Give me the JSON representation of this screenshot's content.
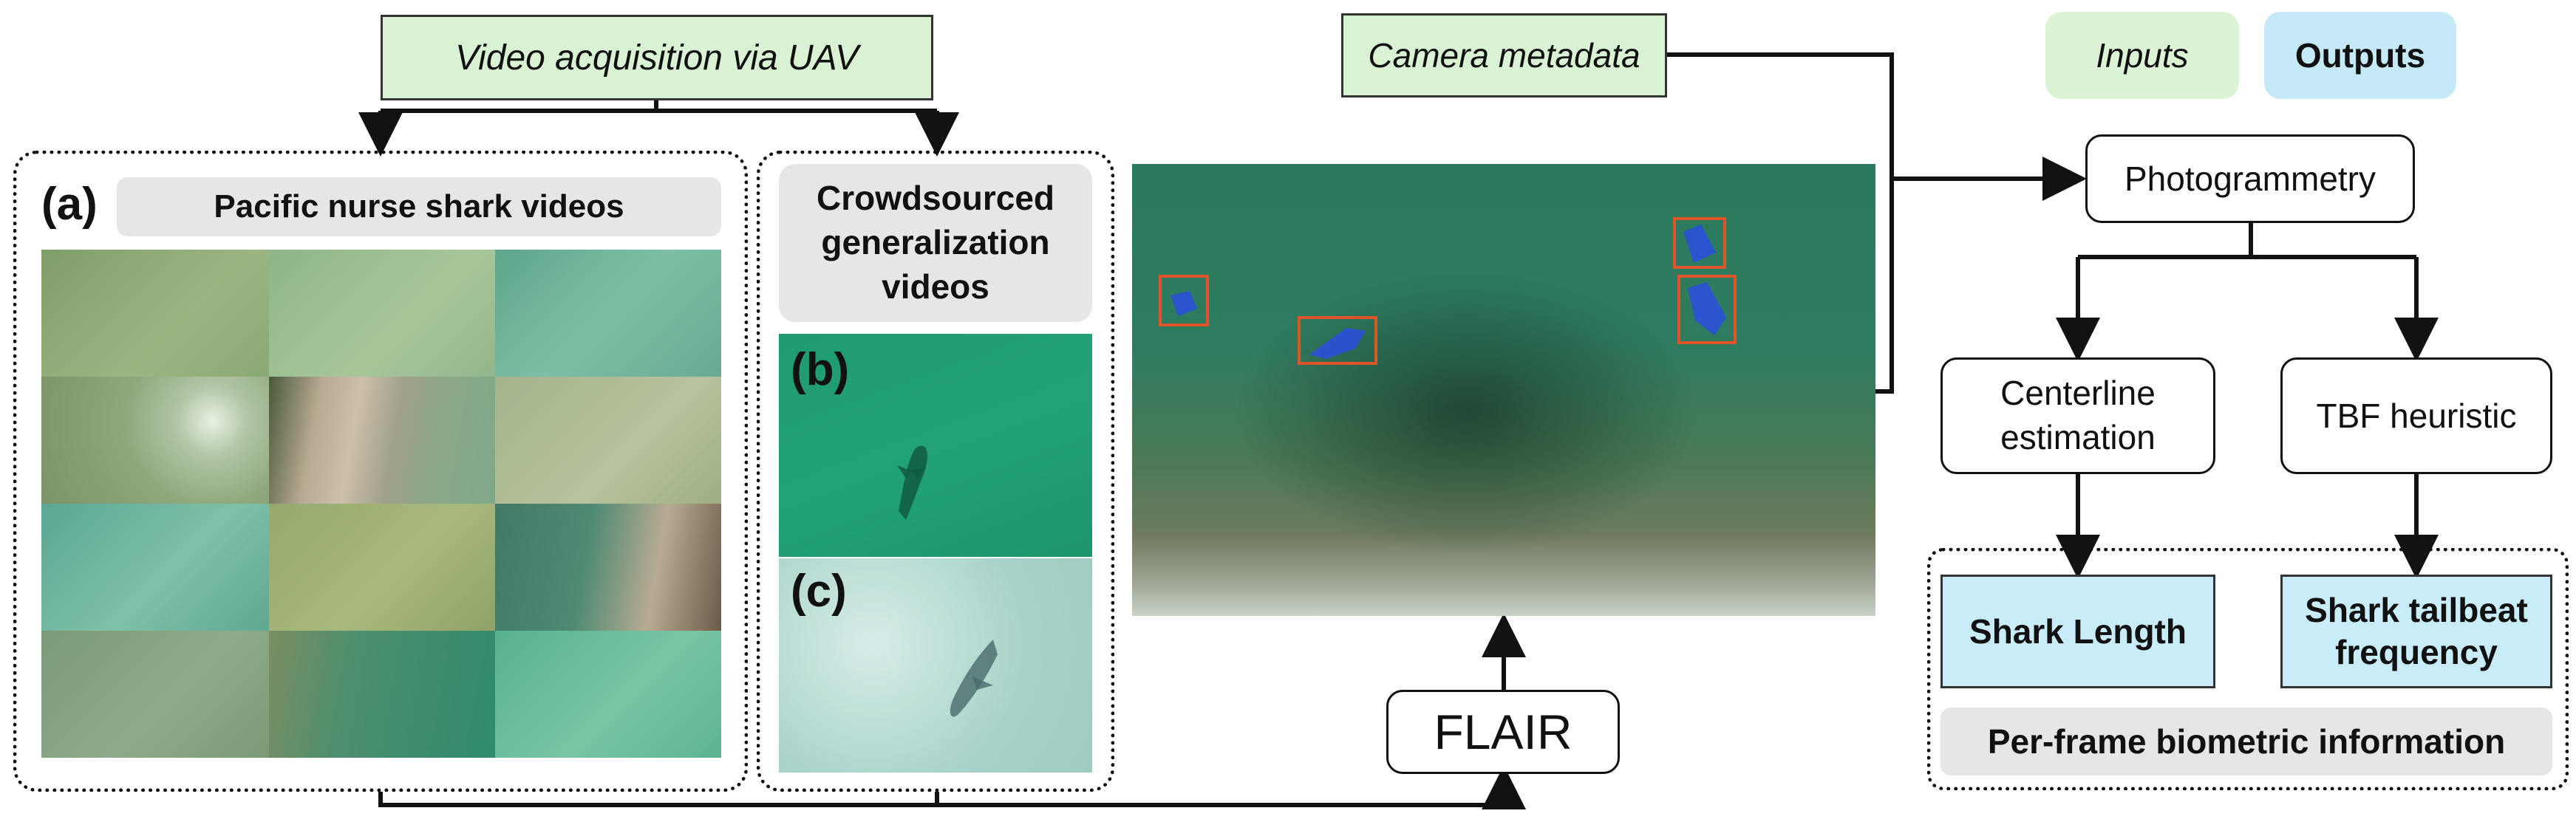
{
  "inputs": {
    "video_acquisition": "Video acquisition via UAV",
    "camera_metadata": "Camera metadata"
  },
  "legend": {
    "inputs": "Inputs",
    "outputs": "Outputs"
  },
  "panel_a": {
    "tag": "(a)",
    "title": "Pacific nurse shark videos"
  },
  "panel_crowd": {
    "title": "Crowdsourced generalization videos",
    "tag_b": "(b)",
    "tag_c": "(c)"
  },
  "nodes": {
    "flair": "FLAIR",
    "photogrammetry": "Photogrammetry",
    "centerline": "Centerline estimation",
    "tbf": "TBF heuristic"
  },
  "outputs": {
    "shark_length": "Shark Length",
    "tailbeat": "Shark tailbeat frequency",
    "group_label": "Per-frame biometric information"
  },
  "colors": {
    "input_fill": "#d9f2d4",
    "output_fill": "#c8ecf8",
    "detection_box": "#e0542a",
    "detection_mask": "#2a4de0"
  }
}
